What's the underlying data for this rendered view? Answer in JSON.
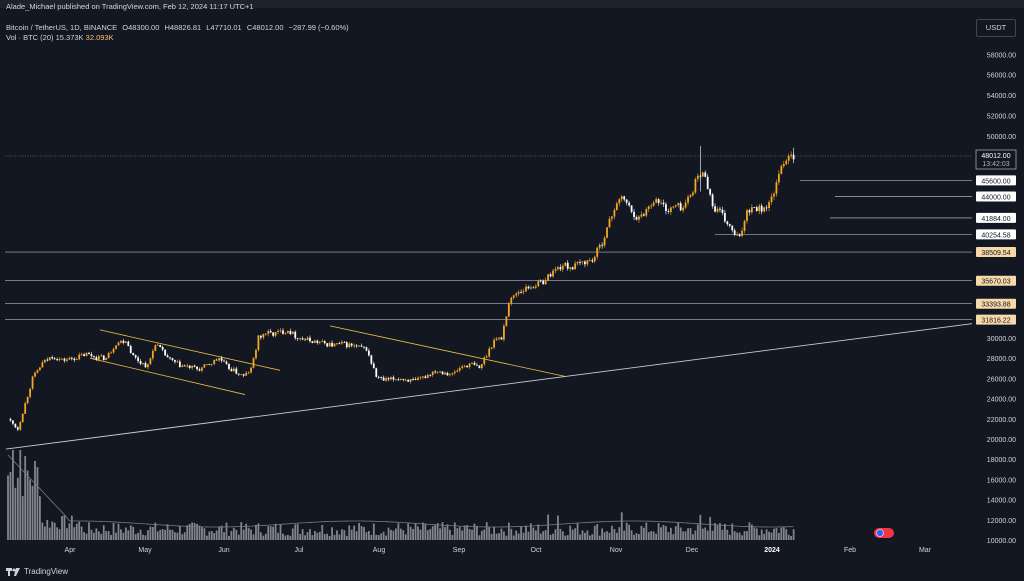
{
  "header": {
    "publisher": "Alade_Michael published on TradingView.com, Feb 12, 2024 11:17 UTC+1",
    "symbol": "Bitcoin / TetherUS, 1D, BINANCE",
    "open": "O48300.00",
    "high": "H48826.81",
    "low": "L47710.01",
    "close": "C48012.00",
    "change": "−287.99 (−0.60%)",
    "volume_label": "Vol · BTC (20)",
    "volume_ma": "15.373K",
    "volume_value": "32.093K",
    "currency_button": "USDT"
  },
  "footer": {
    "brand": "TradingView"
  },
  "colors": {
    "background": "#131722",
    "up_candle": "#f5a623",
    "down_candle": "#ffffff",
    "trendline": "#cccccc",
    "channel": "#f0c040",
    "volume_bar": "#9598a1",
    "price_label_bg": "#f7d8a8"
  },
  "chart_data": {
    "type": "candlestick",
    "symbol": "BTCUSDT",
    "timeframe": "1D",
    "x_labels": [
      "Apr",
      "May",
      "Jun",
      "Jul",
      "Aug",
      "Sep",
      "Oct",
      "Nov",
      "Dec",
      "2024",
      "Feb",
      "Mar"
    ],
    "y_ticks": [
      10000,
      12000,
      14000,
      16000,
      18000,
      20000,
      22000,
      24000,
      26000,
      28000,
      30000,
      50000,
      52000,
      54000,
      56000,
      58000
    ],
    "ylim": [
      10000,
      59000
    ],
    "current_price": {
      "value": "48012.00",
      "countdown": "13:42:03"
    },
    "horizontal_levels": [
      {
        "value": 45600,
        "label": "45600.00",
        "style": "white"
      },
      {
        "value": 44000,
        "label": "44000.00",
        "style": "white"
      },
      {
        "value": 41884,
        "label": "41884.00",
        "style": "white"
      },
      {
        "value": 40254.58,
        "label": "40254.58",
        "style": "white"
      },
      {
        "value": 38509.54,
        "label": "38509.54",
        "style": "orange"
      },
      {
        "value": 35670.03,
        "label": "35670.03",
        "style": "orange"
      },
      {
        "value": 33393.88,
        "label": "33393.88",
        "style": "orange"
      },
      {
        "value": 31816.22,
        "label": "31816.22",
        "style": "orange"
      }
    ],
    "close_path": [
      [
        0,
        22000
      ],
      [
        4,
        21000
      ],
      [
        7,
        23500
      ],
      [
        10,
        26000
      ],
      [
        14,
        27500
      ],
      [
        18,
        28200
      ],
      [
        22,
        27800
      ],
      [
        27,
        28000
      ],
      [
        32,
        28400
      ],
      [
        36,
        28100
      ],
      [
        40,
        28000
      ],
      [
        44,
        29500
      ],
      [
        48,
        29800
      ],
      [
        51,
        28200
      ],
      [
        54,
        27600
      ],
      [
        57,
        27200
      ],
      [
        60,
        29500
      ],
      [
        63,
        28600
      ],
      [
        66,
        27800
      ],
      [
        70,
        27300
      ],
      [
        74,
        27100
      ],
      [
        78,
        26900
      ],
      [
        82,
        27400
      ],
      [
        86,
        28000
      ],
      [
        89,
        27200
      ],
      [
        93,
        26600
      ],
      [
        96,
        26200
      ],
      [
        99,
        26900
      ],
      [
        102,
        30000
      ],
      [
        105,
        30500
      ],
      [
        108,
        30400
      ],
      [
        111,
        30600
      ],
      [
        114,
        30800
      ],
      [
        117,
        30200
      ],
      [
        120,
        29900
      ],
      [
        124,
        29700
      ],
      [
        128,
        29500
      ],
      [
        132,
        29300
      ],
      [
        136,
        29400
      ],
      [
        139,
        29300
      ],
      [
        142,
        29100
      ],
      [
        146,
        28900
      ],
      [
        150,
        26200
      ],
      [
        153,
        25800
      ],
      [
        156,
        25900
      ],
      [
        159,
        26000
      ],
      [
        162,
        25900
      ],
      [
        166,
        25700
      ],
      [
        170,
        26200
      ],
      [
        174,
        26800
      ],
      [
        178,
        26600
      ],
      [
        181,
        26400
      ],
      [
        185,
        27200
      ],
      [
        189,
        27400
      ],
      [
        192,
        27000
      ],
      [
        195,
        28400
      ],
      [
        198,
        29800
      ],
      [
        201,
        30000
      ],
      [
        204,
        33500
      ],
      [
        207,
        34500
      ],
      [
        210,
        34800
      ],
      [
        214,
        35200
      ],
      [
        218,
        35600
      ],
      [
        222,
        36600
      ],
      [
        226,
        37200
      ],
      [
        230,
        37000
      ],
      [
        234,
        37500
      ],
      [
        238,
        37700
      ],
      [
        242,
        39500
      ],
      [
        245,
        41500
      ],
      [
        248,
        43500
      ],
      [
        251,
        43800
      ],
      [
        254,
        42500
      ],
      [
        257,
        41800
      ],
      [
        260,
        42700
      ],
      [
        263,
        43700
      ],
      [
        266,
        43300
      ],
      [
        269,
        42600
      ],
      [
        272,
        43100
      ],
      [
        275,
        42900
      ],
      [
        278,
        44200
      ],
      [
        281,
        46000
      ],
      [
        284,
        46200
      ],
      [
        287,
        43000
      ],
      [
        290,
        42400
      ],
      [
        293,
        41300
      ],
      [
        296,
        40200
      ],
      [
        298,
        39800
      ],
      [
        301,
        42700
      ],
      [
        304,
        43000
      ],
      [
        307,
        42800
      ],
      [
        310,
        43200
      ],
      [
        313,
        45200
      ],
      [
        316,
        47500
      ],
      [
        319,
        48300
      ],
      [
        320,
        48012
      ]
    ],
    "days_total": 356,
    "volume_ma_label": "Vol · BTC (20)"
  }
}
